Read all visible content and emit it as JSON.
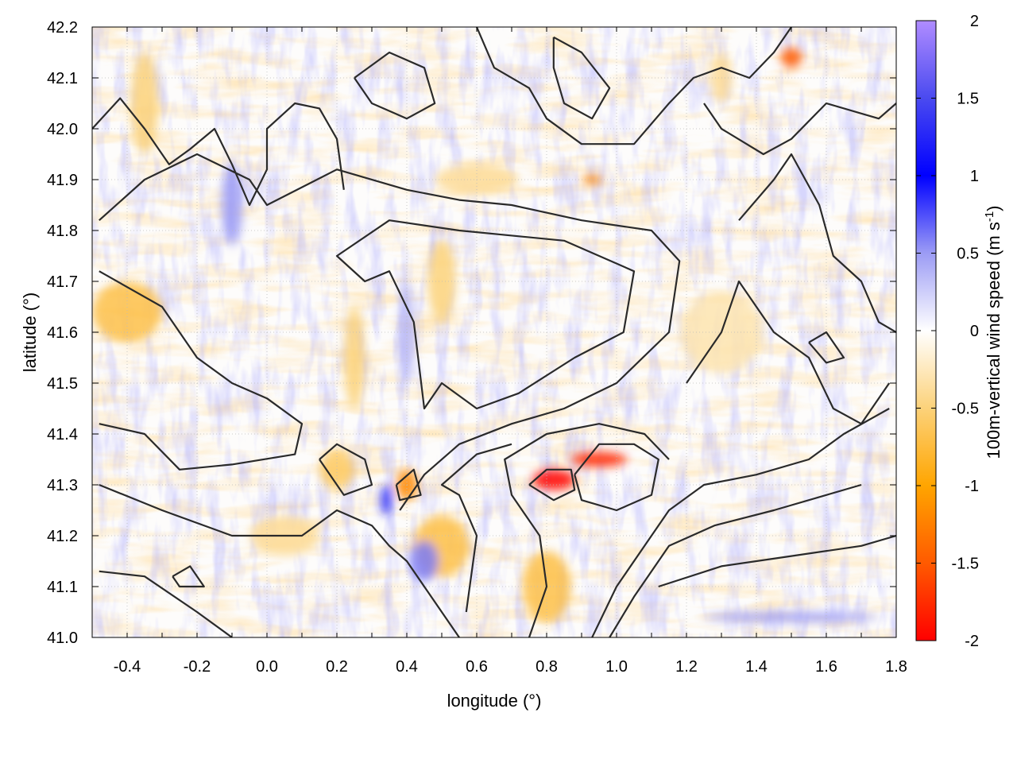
{
  "chart_data": {
    "type": "heatmap",
    "xlabel": "longitude (°)",
    "ylabel": "latitude (°)",
    "xlim": [
      -0.5,
      1.8
    ],
    "ylim": [
      41.0,
      42.2
    ],
    "xticks": [
      "-0.4",
      "-0.2",
      "0.0",
      "0.2",
      "0.4",
      "0.6",
      "0.8",
      "1.0",
      "1.2",
      "1.4",
      "1.6",
      "1.8"
    ],
    "yticks": [
      "41.0",
      "41.1",
      "41.2",
      "41.3",
      "41.4",
      "41.5",
      "41.6",
      "41.7",
      "41.8",
      "41.9",
      "42.0",
      "42.1",
      "42.2"
    ],
    "grid": true,
    "colorbar": {
      "label": "100m-vertical wind speed (m s",
      "label_sup": "-1",
      "label_end": ")",
      "range": [
        -2,
        2
      ],
      "ticks": [
        "2",
        "1.5",
        "1",
        "0.5",
        "0",
        "-0.5",
        "-1",
        "-1.5",
        "-2"
      ],
      "stops": [
        {
          "value": -2,
          "color": "#ff0000"
        },
        {
          "value": -1.5,
          "color": "#ff5a00"
        },
        {
          "value": -1,
          "color": "#ffa500"
        },
        {
          "value": -0.5,
          "color": "#fcd27a"
        },
        {
          "value": 0,
          "color": "#ffffff"
        },
        {
          "value": 0.5,
          "color": "#9c9cf5"
        },
        {
          "value": 1,
          "color": "#0000ff"
        },
        {
          "value": 1.5,
          "color": "#4a4af0"
        },
        {
          "value": 2,
          "color": "#b08cff"
        }
      ]
    },
    "features": [
      {
        "lon": 0.82,
        "lat": 41.31,
        "value": -2.0,
        "rx": 0.06,
        "ry": 0.02
      },
      {
        "lon": 0.95,
        "lat": 41.35,
        "value": -1.8,
        "rx": 0.08,
        "ry": 0.015
      },
      {
        "lon": 1.5,
        "lat": 42.14,
        "value": -1.5,
        "rx": 0.03,
        "ry": 0.02
      },
      {
        "lon": 0.4,
        "lat": 41.3,
        "value": -1.2,
        "rx": 0.03,
        "ry": 0.03
      },
      {
        "lon": 0.34,
        "lat": 41.27,
        "value": 1.2,
        "rx": 0.015,
        "ry": 0.03
      },
      {
        "lon": 0.93,
        "lat": 41.9,
        "value": -1.2,
        "rx": 0.03,
        "ry": 0.01
      },
      {
        "lon": -0.4,
        "lat": 41.64,
        "value": -0.7,
        "rx": 0.1,
        "ry": 0.06
      },
      {
        "lon": -0.35,
        "lat": 42.05,
        "value": -0.5,
        "rx": 0.04,
        "ry": 0.1
      },
      {
        "lon": 0.5,
        "lat": 41.18,
        "value": -0.7,
        "rx": 0.08,
        "ry": 0.06
      },
      {
        "lon": 0.8,
        "lat": 41.1,
        "value": -0.7,
        "rx": 0.07,
        "ry": 0.07
      },
      {
        "lon": 0.2,
        "lat": 41.33,
        "value": -0.6,
        "rx": 0.05,
        "ry": 0.04
      },
      {
        "lon": 0.05,
        "lat": 41.2,
        "value": -0.4,
        "rx": 0.1,
        "ry": 0.04
      },
      {
        "lon": 0.6,
        "lat": 41.9,
        "value": -0.4,
        "rx": 0.12,
        "ry": 0.03
      },
      {
        "lon": 0.5,
        "lat": 41.7,
        "value": -0.5,
        "rx": 0.04,
        "ry": 0.08
      },
      {
        "lon": 0.25,
        "lat": 41.55,
        "value": -0.5,
        "rx": 0.03,
        "ry": 0.1
      },
      {
        "lon": -0.1,
        "lat": 41.85,
        "value": 0.5,
        "rx": 0.03,
        "ry": 0.08
      },
      {
        "lon": 1.5,
        "lat": 41.04,
        "value": 0.5,
        "rx": 0.25,
        "ry": 0.01
      },
      {
        "lon": 0.45,
        "lat": 41.15,
        "value": 0.6,
        "rx": 0.04,
        "ry": 0.04
      },
      {
        "lon": 0.4,
        "lat": 41.6,
        "value": 0.4,
        "rx": 0.02,
        "ry": 0.1
      },
      {
        "lon": 1.3,
        "lat": 41.6,
        "value": -0.3,
        "rx": 0.12,
        "ry": 0.08
      },
      {
        "lon": 1.3,
        "lat": 42.1,
        "value": -0.4,
        "rx": 0.03,
        "ry": 0.05
      }
    ],
    "contours": [
      [
        [
          0.55,
          41.8
        ],
        [
          0.85,
          41.78
        ],
        [
          1.05,
          41.72
        ],
        [
          1.02,
          41.6
        ],
        [
          0.88,
          41.55
        ],
        [
          0.72,
          41.48
        ],
        [
          0.6,
          41.45
        ],
        [
          0.5,
          41.5
        ],
        [
          0.45,
          41.45
        ],
        [
          0.42,
          41.62
        ],
        [
          0.35,
          41.72
        ],
        [
          0.28,
          41.7
        ],
        [
          0.2,
          41.75
        ],
        [
          0.35,
          41.82
        ],
        [
          0.55,
          41.8
        ]
      ],
      [
        [
          -0.48,
          41.72
        ],
        [
          -0.3,
          41.65
        ],
        [
          -0.2,
          41.55
        ],
        [
          -0.1,
          41.5
        ],
        [
          0.0,
          41.47
        ],
        [
          0.1,
          41.42
        ],
        [
          0.08,
          41.36
        ],
        [
          -0.1,
          41.34
        ],
        [
          -0.25,
          41.33
        ],
        [
          -0.35,
          41.4
        ],
        [
          -0.48,
          41.42
        ]
      ],
      [
        [
          -0.48,
          41.82
        ],
        [
          -0.35,
          41.9
        ],
        [
          -0.2,
          41.95
        ],
        [
          -0.05,
          41.9
        ],
        [
          0.0,
          41.85
        ],
        [
          0.2,
          41.92
        ],
        [
          0.4,
          41.88
        ],
        [
          0.55,
          41.86
        ],
        [
          0.7,
          41.85
        ],
        [
          0.9,
          41.82
        ],
        [
          1.1,
          41.8
        ],
        [
          1.18,
          41.74
        ],
        [
          1.15,
          41.6
        ],
        [
          1.0,
          41.5
        ],
        [
          0.85,
          41.45
        ],
        [
          0.7,
          41.42
        ],
        [
          0.55,
          41.38
        ],
        [
          0.45,
          41.32
        ],
        [
          0.38,
          41.25
        ]
      ],
      [
        [
          -0.5,
          42.0
        ],
        [
          -0.42,
          42.06
        ],
        [
          -0.35,
          42.0
        ],
        [
          -0.28,
          41.93
        ],
        [
          -0.22,
          41.96
        ],
        [
          -0.15,
          42.0
        ],
        [
          -0.1,
          41.93
        ],
        [
          -0.05,
          41.85
        ],
        [
          0.0,
          41.92
        ],
        [
          0.0,
          42.0
        ],
        [
          0.08,
          42.05
        ],
        [
          0.15,
          42.04
        ],
        [
          0.2,
          41.98
        ],
        [
          0.22,
          41.88
        ]
      ],
      [
        [
          0.25,
          42.1
        ],
        [
          0.35,
          42.15
        ],
        [
          0.45,
          42.12
        ],
        [
          0.48,
          42.05
        ],
        [
          0.4,
          42.02
        ],
        [
          0.3,
          42.05
        ],
        [
          0.25,
          42.1
        ]
      ],
      [
        [
          0.82,
          42.18
        ],
        [
          0.9,
          42.15
        ],
        [
          0.98,
          42.08
        ],
        [
          0.93,
          42.02
        ],
        [
          0.85,
          42.05
        ],
        [
          0.82,
          42.12
        ],
        [
          0.82,
          42.18
        ]
      ],
      [
        [
          0.6,
          42.2
        ],
        [
          0.65,
          42.12
        ],
        [
          0.75,
          42.08
        ],
        [
          0.8,
          42.02
        ],
        [
          0.9,
          41.97
        ],
        [
          1.05,
          41.97
        ],
        [
          1.15,
          42.05
        ],
        [
          1.22,
          42.1
        ],
        [
          1.3,
          42.12
        ],
        [
          1.38,
          42.1
        ],
        [
          1.45,
          42.15
        ],
        [
          1.5,
          42.2
        ]
      ],
      [
        [
          1.25,
          42.05
        ],
        [
          1.3,
          42.0
        ],
        [
          1.42,
          41.95
        ],
        [
          1.5,
          41.98
        ],
        [
          1.6,
          42.05
        ],
        [
          1.75,
          42.02
        ],
        [
          1.8,
          42.05
        ]
      ],
      [
        [
          0.93,
          41.0
        ],
        [
          1.0,
          41.1
        ],
        [
          1.08,
          41.18
        ],
        [
          1.15,
          41.25
        ],
        [
          1.25,
          41.3
        ],
        [
          1.4,
          41.32
        ],
        [
          1.55,
          41.35
        ],
        [
          1.65,
          41.4
        ],
        [
          1.78,
          41.45
        ]
      ],
      [
        [
          0.98,
          41.0
        ],
        [
          1.05,
          41.08
        ],
        [
          1.15,
          41.18
        ],
        [
          1.28,
          41.22
        ],
        [
          1.45,
          41.25
        ],
        [
          1.6,
          41.28
        ],
        [
          1.7,
          41.3
        ]
      ],
      [
        [
          1.12,
          41.1
        ],
        [
          1.3,
          41.14
        ],
        [
          1.5,
          41.16
        ],
        [
          1.7,
          41.18
        ],
        [
          1.8,
          41.2
        ]
      ],
      [
        [
          0.88,
          41.32
        ],
        [
          0.95,
          41.38
        ],
        [
          1.05,
          41.38
        ],
        [
          1.12,
          41.35
        ],
        [
          1.1,
          41.28
        ],
        [
          1.0,
          41.25
        ],
        [
          0.9,
          41.27
        ],
        [
          0.88,
          41.32
        ]
      ],
      [
        [
          0.75,
          41.3
        ],
        [
          0.8,
          41.33
        ],
        [
          0.87,
          41.33
        ],
        [
          0.88,
          41.29
        ],
        [
          0.82,
          41.27
        ],
        [
          0.75,
          41.3
        ]
      ],
      [
        [
          1.2,
          41.5
        ],
        [
          1.3,
          41.6
        ],
        [
          1.35,
          41.7
        ],
        [
          1.45,
          41.6
        ],
        [
          1.55,
          41.55
        ],
        [
          1.62,
          41.45
        ],
        [
          1.7,
          41.42
        ],
        [
          1.78,
          41.5
        ]
      ],
      [
        [
          1.35,
          41.82
        ],
        [
          1.45,
          41.9
        ],
        [
          1.5,
          41.95
        ],
        [
          1.58,
          41.85
        ],
        [
          1.62,
          41.75
        ],
        [
          1.7,
          41.7
        ],
        [
          1.75,
          41.62
        ],
        [
          1.8,
          41.6
        ]
      ],
      [
        [
          -0.48,
          41.3
        ],
        [
          -0.3,
          41.25
        ],
        [
          -0.1,
          41.2
        ],
        [
          0.1,
          41.2
        ],
        [
          0.2,
          41.25
        ],
        [
          0.3,
          41.22
        ],
        [
          0.35,
          41.18
        ],
        [
          0.4,
          41.15
        ],
        [
          0.5,
          41.05
        ],
        [
          0.55,
          41.0
        ]
      ],
      [
        [
          -0.48,
          41.13
        ],
        [
          -0.35,
          41.12
        ],
        [
          -0.2,
          41.05
        ],
        [
          -0.1,
          41.0
        ]
      ],
      [
        [
          0.75,
          41.0
        ],
        [
          0.8,
          41.1
        ],
        [
          0.78,
          41.2
        ],
        [
          0.7,
          41.28
        ],
        [
          0.68,
          41.35
        ],
        [
          0.8,
          41.4
        ],
        [
          0.95,
          41.42
        ],
        [
          1.08,
          41.4
        ],
        [
          1.15,
          41.35
        ]
      ],
      [
        [
          0.15,
          41.35
        ],
        [
          0.2,
          41.38
        ],
        [
          0.28,
          41.35
        ],
        [
          0.3,
          41.3
        ],
        [
          0.22,
          41.28
        ],
        [
          0.15,
          41.35
        ]
      ],
      [
        [
          0.37,
          41.3
        ],
        [
          0.42,
          41.33
        ],
        [
          0.44,
          41.28
        ],
        [
          0.38,
          41.27
        ],
        [
          0.37,
          41.3
        ]
      ],
      [
        [
          0.57,
          41.05
        ],
        [
          0.6,
          41.2
        ],
        [
          0.55,
          41.28
        ],
        [
          0.5,
          41.3
        ],
        [
          0.6,
          41.36
        ],
        [
          0.7,
          41.38
        ]
      ],
      [
        [
          -0.27,
          41.12
        ],
        [
          -0.22,
          41.14
        ],
        [
          -0.18,
          41.1
        ],
        [
          -0.25,
          41.1
        ],
        [
          -0.27,
          41.12
        ]
      ],
      [
        [
          1.55,
          41.58
        ],
        [
          1.6,
          41.6
        ],
        [
          1.65,
          41.55
        ],
        [
          1.6,
          41.54
        ],
        [
          1.55,
          41.58
        ]
      ]
    ]
  }
}
